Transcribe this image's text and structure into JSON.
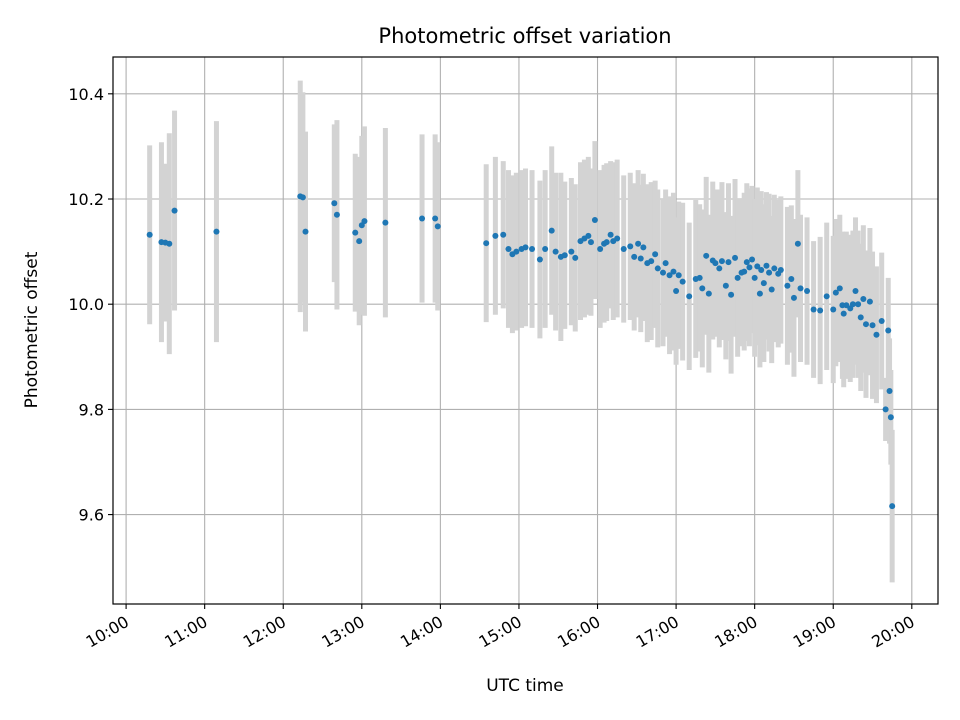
{
  "chart_data": {
    "type": "scatter",
    "title": "Photometric offset variation",
    "xlabel": "UTC time",
    "ylabel": "Photometric offset",
    "xlim": [
      "09:50",
      "20:20"
    ],
    "ylim": [
      9.43,
      10.47
    ],
    "x_ticks": [
      "10:00",
      "11:00",
      "12:00",
      "13:00",
      "14:00",
      "15:00",
      "16:00",
      "17:00",
      "18:00",
      "19:00",
      "20:00"
    ],
    "y_ticks": [
      9.6,
      9.8,
      10.0,
      10.2,
      10.4
    ],
    "grid": true,
    "colors": {
      "points": "#1f77b4",
      "error_bars": "#d3d3d3",
      "grid": "#b0b0b0"
    },
    "series": [
      {
        "x": [
          "10:18",
          "10:27",
          "10:30",
          "10:33",
          "10:37",
          "11:09",
          "12:13",
          "12:15",
          "12:17",
          "12:39",
          "12:41",
          "12:55",
          "12:58",
          "13:00",
          "13:02",
          "13:18",
          "13:46",
          "13:56",
          "13:58",
          "14:35",
          "14:42",
          "14:48",
          "14:52",
          "14:55",
          "14:58",
          "15:02",
          "15:05",
          "15:10",
          "15:16",
          "15:20",
          "15:25",
          "15:28",
          "15:32",
          "15:35",
          "15:40",
          "15:43",
          "15:47",
          "15:50",
          "15:53",
          "15:55",
          "15:58",
          "16:02",
          "16:05",
          "16:07",
          "16:10",
          "16:12",
          "16:15",
          "16:20",
          "16:25",
          "16:28",
          "16:31",
          "16:33",
          "16:35",
          "16:38",
          "16:41",
          "16:44",
          "16:46",
          "16:50",
          "16:52",
          "16:55",
          "16:58",
          "17:00",
          "17:02",
          "17:05",
          "17:10",
          "17:15",
          "17:18",
          "17:20",
          "17:23",
          "17:25",
          "17:28",
          "17:30",
          "17:33",
          "17:35",
          "17:38",
          "17:40",
          "17:42",
          "17:45",
          "17:47",
          "17:50",
          "17:52",
          "17:54",
          "17:56",
          "17:58",
          "18:00",
          "18:02",
          "18:04",
          "18:05",
          "18:07",
          "18:09",
          "18:11",
          "18:13",
          "18:15",
          "18:18",
          "18:20",
          "18:25",
          "18:28",
          "18:30",
          "18:33",
          "18:35",
          "18:40",
          "18:45",
          "18:50",
          "18:55",
          "19:00",
          "19:02",
          "19:05",
          "19:07",
          "19:08",
          "19:10",
          "19:13",
          "19:15",
          "19:17",
          "19:19",
          "19:21",
          "19:23",
          "19:25",
          "19:28",
          "19:30",
          "19:33",
          "19:37",
          "19:40",
          "19:42",
          "19:43",
          "19:44"
        ],
        "y": [
          10.132,
          10.118,
          10.117,
          10.115,
          10.178,
          10.138,
          10.205,
          10.203,
          10.138,
          10.192,
          10.17,
          10.136,
          10.12,
          10.15,
          10.158,
          10.155,
          10.163,
          10.163,
          10.148,
          10.116,
          10.13,
          10.132,
          10.105,
          10.095,
          10.1,
          10.105,
          10.108,
          10.105,
          10.085,
          10.105,
          10.14,
          10.1,
          10.09,
          10.093,
          10.1,
          10.088,
          10.12,
          10.125,
          10.13,
          10.118,
          10.16,
          10.105,
          10.115,
          10.118,
          10.132,
          10.12,
          10.125,
          10.105,
          10.11,
          10.09,
          10.115,
          10.087,
          10.108,
          10.078,
          10.082,
          10.095,
          10.068,
          10.06,
          10.078,
          10.055,
          10.062,
          10.025,
          10.055,
          10.043,
          10.015,
          10.048,
          10.05,
          10.03,
          10.092,
          10.02,
          10.083,
          10.078,
          10.068,
          10.082,
          10.035,
          10.08,
          10.018,
          10.088,
          10.05,
          10.06,
          10.062,
          10.08,
          10.07,
          10.085,
          10.05,
          10.072,
          10.02,
          10.065,
          10.04,
          10.073,
          10.06,
          10.028,
          10.068,
          10.058,
          10.065,
          10.035,
          10.048,
          10.012,
          10.115,
          10.03,
          10.025,
          9.99,
          9.988,
          10.015,
          9.99,
          10.022,
          10.03,
          9.998,
          9.982,
          9.998,
          9.992,
          10.0,
          10.025,
          10.0,
          9.975,
          10.01,
          9.962,
          10.005,
          9.96,
          9.942,
          9.968,
          9.8,
          9.95,
          9.835,
          9.785
        ],
        "err": [
          0.17,
          0.19,
          0.15,
          0.21,
          0.19,
          0.21,
          0.22,
          0.2,
          0.19,
          0.15,
          0.18,
          0.15,
          0.16,
          0.17,
          0.18,
          0.18,
          0.16,
          0.16,
          0.16,
          0.15,
          0.15,
          0.14,
          0.15,
          0.15,
          0.15,
          0.15,
          0.15,
          0.15,
          0.15,
          0.15,
          0.16,
          0.15,
          0.16,
          0.14,
          0.14,
          0.14,
          0.15,
          0.15,
          0.15,
          0.14,
          0.15,
          0.15,
          0.15,
          0.15,
          0.14,
          0.15,
          0.15,
          0.14,
          0.14,
          0.14,
          0.14,
          0.14,
          0.14,
          0.15,
          0.15,
          0.14,
          0.15,
          0.14,
          0.14,
          0.15,
          0.15,
          0.14,
          0.14,
          0.15,
          0.14,
          0.15,
          0.14,
          0.15,
          0.15,
          0.15,
          0.15,
          0.14,
          0.15,
          0.15,
          0.14,
          0.15,
          0.15,
          0.15,
          0.15,
          0.14,
          0.15,
          0.15,
          0.15,
          0.14,
          0.15,
          0.15,
          0.14,
          0.15,
          0.15,
          0.14,
          0.15,
          0.14,
          0.14,
          0.14,
          0.14,
          0.15,
          0.14,
          0.15,
          0.14,
          0.14,
          0.14,
          0.13,
          0.14,
          0.14,
          0.14,
          0.14,
          0.14,
          0.14,
          0.14,
          0.14,
          0.14,
          0.14,
          0.14,
          0.14,
          0.14,
          0.14,
          0.14,
          0.14,
          0.14,
          0.13,
          0.13,
          0.06,
          0.1,
          0.1,
          0.09
        ]
      }
    ],
    "final_point": {
      "x": "19:45",
      "y": 9.616,
      "err": 0.145
    }
  }
}
